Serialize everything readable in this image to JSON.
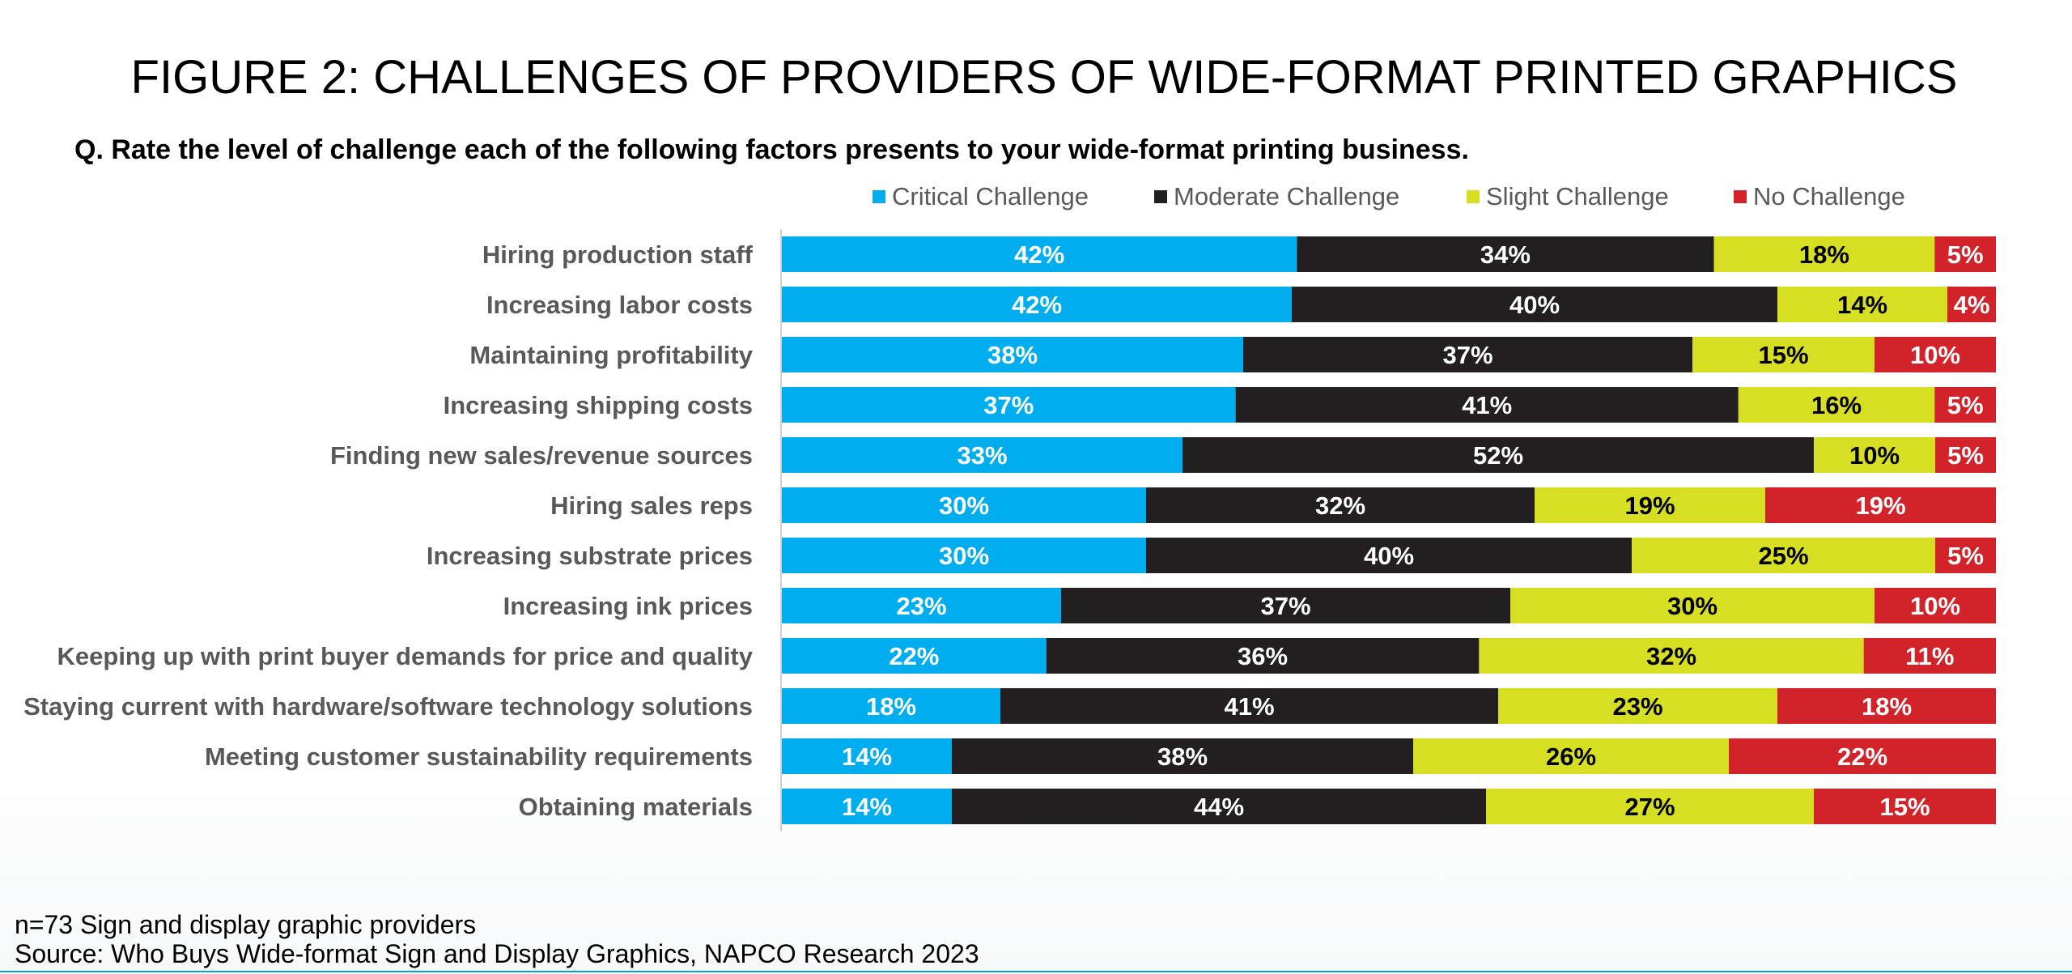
{
  "title": "FIGURE 2: CHALLENGES OF PROVIDERS OF WIDE-FORMAT PRINTED GRAPHICS",
  "subtitle": "Q. Rate the level of challenge each of the following factors presents to your wide-format printing business.",
  "footnote_n": "n=73 Sign and display graphic providers",
  "footnote_source": "Source: Who Buys Wide-format Sign and Display Graphics, NAPCO Research 2023",
  "chart_data": {
    "type": "bar",
    "orientation": "horizontal",
    "stacked": "100%",
    "legend_position": "top",
    "grid": false,
    "xlim": [
      0,
      100
    ],
    "categories": [
      "Hiring production staff",
      "Increasing labor costs",
      "Maintaining profitability",
      "Increasing shipping costs",
      "Finding new sales/revenue sources",
      "Hiring sales reps",
      "Increasing substrate prices",
      "Increasing ink prices",
      "Keeping up with print buyer demands for price and quality",
      "Staying current with hardware/software technology solutions",
      "Meeting customer sustainability requirements",
      "Obtaining materials"
    ],
    "series": [
      {
        "name": "Critical Challenge",
        "color": "#00aeef",
        "label_color": "#ffffff",
        "values": [
          42,
          42,
          38,
          37,
          33,
          30,
          30,
          23,
          22,
          18,
          14,
          14
        ]
      },
      {
        "name": "Moderate Challenge",
        "color": "#231f20",
        "label_color": "#ffffff",
        "values": [
          34,
          40,
          37,
          41,
          52,
          32,
          40,
          37,
          36,
          41,
          38,
          44
        ]
      },
      {
        "name": "Slight Challenge",
        "color": "#d7df23",
        "label_color": "#000000",
        "values": [
          18,
          14,
          15,
          16,
          10,
          19,
          25,
          30,
          32,
          23,
          26,
          27
        ]
      },
      {
        "name": "No Challenge",
        "color": "#d2232a",
        "label_color": "#ffffff",
        "values": [
          5,
          4,
          10,
          5,
          5,
          19,
          5,
          10,
          11,
          18,
          22,
          15
        ]
      }
    ]
  }
}
